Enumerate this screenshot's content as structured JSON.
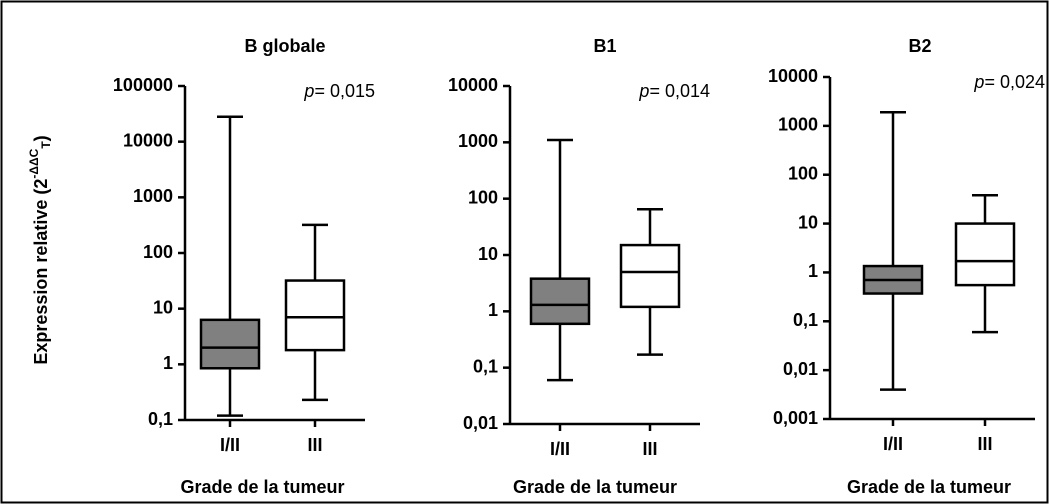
{
  "chart_data": [
    {
      "type": "box",
      "title": "B globale",
      "ylabel": "Expression relative (2",
      "ylabel_sup": "-ΔΔC",
      "ylabel_sub": "T",
      "ylabel_end": ")",
      "p_label": "p",
      "p_value": "= 0,015",
      "xlabel": "Grade de la tumeur",
      "categories": [
        "I/II",
        "III"
      ],
      "colors": [
        "#808080",
        "#ffffff"
      ],
      "min": [
        0.12,
        0.23
      ],
      "q1": [
        0.85,
        1.8
      ],
      "median": [
        2,
        7
      ],
      "q3": [
        6.3,
        32
      ],
      "max": [
        28000,
        320
      ],
      "log_scale": true,
      "ylim": [
        0.1,
        100000
      ],
      "yticks": [
        {
          "value": 0.1,
          "label": "0,1"
        },
        1,
        10,
        100,
        1000,
        10000,
        100000
      ]
    },
    {
      "type": "box",
      "title": "B1",
      "p_label": "p",
      "p_value": "= 0,014",
      "xlabel": "Grade de la tumeur",
      "categories": [
        "I/II",
        "III"
      ],
      "colors": [
        "#808080",
        "#ffffff"
      ],
      "min": [
        0.06,
        0.17
      ],
      "q1": [
        0.6,
        1.2
      ],
      "median": [
        1.3,
        5
      ],
      "q3": [
        3.8,
        15
      ],
      "max": [
        1100,
        65
      ],
      "log_scale": true,
      "ylim": [
        0.01,
        10000
      ],
      "yticks": [
        {
          "value": 0.01,
          "label": "0,01"
        },
        {
          "value": 0.1,
          "label": "0,1"
        },
        1,
        10,
        100,
        1000,
        10000
      ]
    },
    {
      "type": "box",
      "title": "B2",
      "p_label": "p",
      "p_value": "= 0,024",
      "xlabel": "Grade de la tumeur",
      "categories": [
        "I/II",
        "III"
      ],
      "colors": [
        "#808080",
        "#ffffff"
      ],
      "min": [
        0.004,
        0.06
      ],
      "q1": [
        0.37,
        0.55
      ],
      "median": [
        0.7,
        1.7
      ],
      "q3": [
        1.35,
        10
      ],
      "max": [
        1900,
        38
      ],
      "log_scale": true,
      "ylim": [
        0.001,
        10000
      ],
      "yticks": [
        {
          "value": 0.001,
          "label": "0,001"
        },
        {
          "value": 0.01,
          "label": "0,01"
        },
        {
          "value": 0.1,
          "label": "0,1"
        },
        1,
        10,
        100,
        1000,
        10000
      ]
    }
  ]
}
